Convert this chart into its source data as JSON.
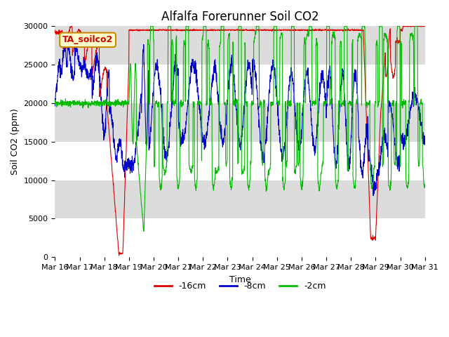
{
  "title": "Alfalfa Forerunner Soil CO2",
  "xlabel": "Time",
  "ylabel": "Soil CO2 (ppm)",
  "ylim": [
    0,
    30000
  ],
  "yticks": [
    0,
    5000,
    10000,
    15000,
    20000,
    25000,
    30000
  ],
  "xtick_labels": [
    "Mar 16",
    "Mar 17",
    "Mar 18",
    "Mar 19",
    "Mar 20",
    "Mar 21",
    "Mar 22",
    "Mar 23",
    "Mar 24",
    "Mar 25",
    "Mar 26",
    "Mar 27",
    "Mar 28",
    "Mar 29",
    "Mar 30",
    "Mar 31"
  ],
  "legend_labels": [
    "-16cm",
    "-8cm",
    "-2cm"
  ],
  "legend_colors": [
    "#dd0000",
    "#0000cc",
    "#00bb00"
  ],
  "box_label": "TA_soilco2",
  "box_facecolor": "#ffffcc",
  "box_edgecolor": "#cc8800",
  "plot_bg": "#dcdcdc",
  "band_color": "#c8c8c8",
  "title_fontsize": 12,
  "axis_label_fontsize": 9,
  "tick_fontsize": 8
}
